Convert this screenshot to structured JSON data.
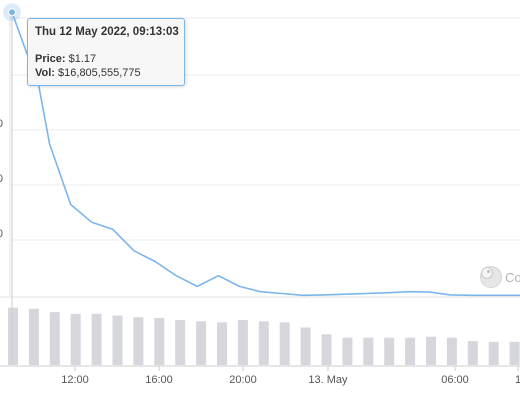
{
  "chart_data": {
    "type": "line",
    "tooltip": {
      "date": "Thu 12 May 2022, 09:13:03",
      "price_label": "Price:",
      "price_value": "$1.17",
      "vol_label": "Vol:",
      "vol_value": "$16,805,555,775"
    },
    "watermark": "Co",
    "x_tick_labels": [
      "12:00",
      "16:00",
      "20:00",
      "13. May",
      "06:00",
      "1"
    ],
    "y_tick_labels": [
      "0",
      "0",
      "0"
    ],
    "price_series": {
      "color": "#7cb5ec",
      "x_hours": [
        9.22,
        10.5,
        11.0,
        12.0,
        13.0,
        14.0,
        15.0,
        16.0,
        17.0,
        18.0,
        19.0,
        20.0,
        21.0,
        22.0,
        23.0,
        24.0,
        25.0,
        26.0,
        27.0,
        28.0,
        29.0,
        30.0,
        31.0,
        32.0,
        33.0
      ],
      "y": [
        1.17,
        0.96,
        0.8,
        0.63,
        0.58,
        0.56,
        0.5,
        0.47,
        0.43,
        0.4,
        0.43,
        0.4,
        0.385,
        0.38,
        0.375,
        0.376,
        0.378,
        0.38,
        0.382,
        0.385,
        0.384,
        0.376,
        0.375,
        0.375,
        0.375
      ]
    },
    "volume_series": {
      "color": "#d6d7dc",
      "values": [
        16.8,
        16.5,
        15.5,
        15.0,
        15.0,
        14.5,
        14.0,
        13.8,
        13.2,
        12.8,
        12.5,
        13.2,
        12.8,
        12.5,
        11.0,
        9.0,
        8.0,
        8.0,
        8.0,
        8.0,
        8.3,
        8.0,
        7.0,
        6.8,
        6.8
      ]
    }
  }
}
